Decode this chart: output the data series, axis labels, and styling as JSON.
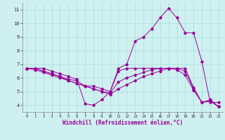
{
  "xlabel": "Windchill (Refroidissement éolien,°C)",
  "ylabel": "",
  "bg_color": "#cff0f0",
  "line_color": "#990099",
  "grid_color": "#aadddd",
  "xlim": [
    -0.5,
    23.5
  ],
  "ylim": [
    3.5,
    11.5
  ],
  "xticks": [
    0,
    1,
    2,
    3,
    4,
    5,
    6,
    7,
    8,
    9,
    10,
    11,
    12,
    13,
    14,
    15,
    16,
    17,
    18,
    19,
    20,
    21,
    22,
    23
  ],
  "yticks": [
    4,
    5,
    6,
    7,
    8,
    9,
    10,
    11
  ],
  "lines": [
    {
      "x": [
        0,
        1,
        2,
        3,
        4,
        5,
        6,
        7,
        8,
        9,
        10,
        11,
        12,
        13,
        14,
        15,
        16,
        17,
        18,
        19,
        20,
        21,
        22,
        23
      ],
      "y": [
        6.7,
        6.7,
        6.7,
        6.5,
        6.3,
        6.1,
        5.9,
        4.1,
        4.0,
        4.4,
        5.0,
        6.7,
        7.0,
        8.7,
        9.0,
        9.6,
        10.4,
        11.1,
        10.4,
        9.3,
        9.3,
        7.2,
        4.2,
        4.2
      ]
    },
    {
      "x": [
        0,
        1,
        2,
        3,
        4,
        5,
        6,
        7,
        8,
        9,
        10,
        11,
        12,
        13,
        14,
        15,
        16,
        17,
        18,
        19,
        20,
        21,
        22,
        23
      ],
      "y": [
        6.7,
        6.7,
        6.5,
        6.3,
        6.1,
        5.9,
        5.8,
        5.4,
        5.4,
        5.2,
        5.0,
        6.5,
        6.7,
        6.7,
        6.7,
        6.7,
        6.7,
        6.7,
        6.7,
        6.7,
        5.3,
        4.2,
        4.4,
        3.9
      ]
    },
    {
      "x": [
        0,
        1,
        2,
        3,
        4,
        5,
        6,
        7,
        8,
        9,
        10,
        11,
        12,
        13,
        14,
        15,
        16,
        17,
        18,
        19,
        20,
        21,
        22,
        23
      ],
      "y": [
        6.7,
        6.7,
        6.5,
        6.3,
        6.1,
        5.8,
        5.6,
        5.4,
        5.2,
        5.0,
        4.9,
        5.7,
        6.0,
        6.2,
        6.4,
        6.6,
        6.7,
        6.7,
        6.7,
        6.5,
        5.2,
        4.2,
        4.3,
        3.9
      ]
    },
    {
      "x": [
        0,
        1,
        2,
        3,
        4,
        5,
        6,
        7,
        8,
        9,
        10,
        11,
        12,
        13,
        14,
        15,
        16,
        17,
        18,
        19,
        20,
        21,
        22,
        23
      ],
      "y": [
        6.7,
        6.6,
        6.4,
        6.2,
        6.0,
        5.8,
        5.6,
        5.4,
        5.2,
        5.0,
        4.8,
        5.2,
        5.5,
        5.8,
        6.1,
        6.3,
        6.5,
        6.7,
        6.6,
        6.2,
        5.1,
        4.2,
        4.3,
        3.9
      ]
    }
  ]
}
